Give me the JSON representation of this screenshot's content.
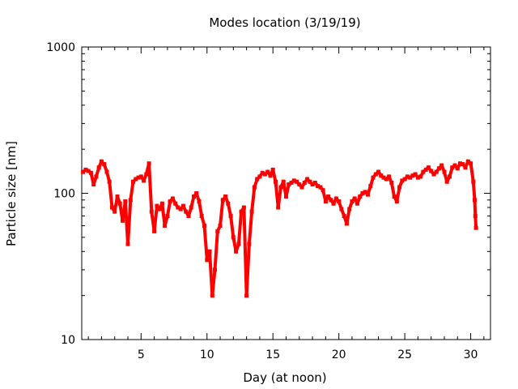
{
  "chart_data": {
    "type": "scatter",
    "title": "Modes location (3/19/19)",
    "xlabel": "Day (at noon)",
    "ylabel": "Particle size [nm]",
    "xlim": [
      0.5,
      31.5
    ],
    "ylim": [
      10,
      1000
    ],
    "yscale": "log",
    "x_ticks": [
      5,
      10,
      15,
      20,
      25,
      30
    ],
    "x_tick_labels": [
      "5",
      "10",
      "15",
      "20",
      "25",
      "30"
    ],
    "y_ticks": [
      10,
      100,
      1000
    ],
    "y_tick_labels": [
      "10",
      "100",
      "1000"
    ],
    "grid": false,
    "legend": "none",
    "marker_color": "#ff0000",
    "series": [
      {
        "x": [
          0.6,
          0.8,
          1.0,
          1.2,
          1.4,
          1.6,
          1.8,
          2.0,
          2.2,
          2.4,
          2.6,
          2.8,
          3.0,
          3.2,
          3.4,
          3.6,
          3.8,
          4.0,
          4.2,
          4.4,
          4.6,
          4.8,
          5.0,
          5.2,
          5.4,
          5.6,
          5.8,
          6.0,
          6.2,
          6.4,
          6.6,
          6.8,
          7.0,
          7.2,
          7.4,
          7.6,
          7.8,
          8.0,
          8.2,
          8.4,
          8.6,
          8.8,
          9.0,
          9.2,
          9.4,
          9.6,
          9.8,
          10.0,
          10.2,
          10.4,
          10.6,
          10.8,
          11.0,
          11.2,
          11.4,
          11.6,
          11.8,
          12.0,
          12.2,
          12.4,
          12.6,
          12.8,
          13.0,
          13.2,
          13.4,
          13.6,
          13.8,
          14.0,
          14.2,
          14.4,
          14.6,
          14.8,
          15.0,
          15.2,
          15.4,
          15.6,
          15.8,
          16.0,
          16.2,
          16.4,
          16.6,
          16.8,
          17.0,
          17.2,
          17.4,
          17.6,
          17.8,
          18.0,
          18.2,
          18.4,
          18.6,
          18.8,
          19.0,
          19.2,
          19.4,
          19.6,
          19.8,
          20.0,
          20.2,
          20.4,
          20.6,
          20.8,
          21.0,
          21.2,
          21.4,
          21.6,
          21.8,
          22.0,
          22.2,
          22.4,
          22.6,
          22.8,
          23.0,
          23.2,
          23.4,
          23.6,
          23.8,
          24.0,
          24.2,
          24.4,
          24.6,
          24.8,
          25.0,
          25.2,
          25.4,
          25.6,
          25.8,
          26.0,
          26.2,
          26.4,
          26.6,
          26.8,
          27.0,
          27.2,
          27.4,
          27.6,
          27.8,
          28.0,
          28.2,
          28.4,
          28.6,
          28.8,
          29.0,
          29.2,
          29.4,
          29.6,
          29.8,
          30.0,
          30.2,
          30.3,
          30.35,
          30.4
        ],
        "y": [
          140,
          145,
          142,
          138,
          115,
          130,
          150,
          165,
          158,
          140,
          120,
          80,
          75,
          95,
          85,
          65,
          88,
          45,
          90,
          120,
          125,
          128,
          130,
          122,
          135,
          160,
          75,
          55,
          82,
          78,
          85,
          60,
          70,
          88,
          92,
          85,
          80,
          78,
          82,
          75,
          70,
          80,
          95,
          100,
          88,
          70,
          60,
          35,
          40,
          20,
          30,
          55,
          60,
          90,
          95,
          85,
          70,
          50,
          40,
          45,
          75,
          80,
          20,
          45,
          75,
          110,
          125,
          130,
          138,
          135,
          140,
          132,
          145,
          120,
          80,
          110,
          120,
          95,
          115,
          118,
          122,
          120,
          115,
          110,
          118,
          125,
          120,
          115,
          118,
          112,
          110,
          105,
          88,
          95,
          90,
          85,
          92,
          88,
          78,
          70,
          62,
          78,
          88,
          92,
          85,
          95,
          100,
          102,
          98,
          112,
          128,
          135,
          140,
          132,
          128,
          125,
          130,
          118,
          95,
          88,
          110,
          122,
          125,
          130,
          128,
          132,
          135,
          128,
          130,
          140,
          145,
          150,
          142,
          135,
          140,
          148,
          155,
          140,
          120,
          130,
          150,
          155,
          148,
          160,
          158,
          150,
          165,
          160,
          120,
          90,
          70,
          58
        ]
      }
    ]
  }
}
